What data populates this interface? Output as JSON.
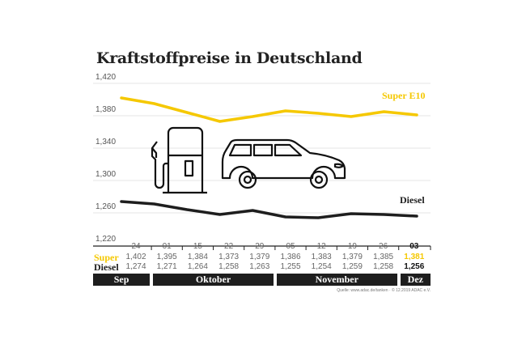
{
  "chart_data": {
    "type": "line",
    "title": "Kraftstoffpreise in Deutschland",
    "categories": [
      "24",
      "01",
      "15",
      "22",
      "29",
      "05",
      "12",
      "19",
      "26",
      "03"
    ],
    "months": [
      {
        "label": "Sep",
        "span": 1
      },
      {
        "label": "Oktober",
        "span": 4
      },
      {
        "label": "November",
        "span": 4
      },
      {
        "label": "Dez",
        "span": 1
      }
    ],
    "series": [
      {
        "name": "Super E10",
        "row_label": "Super",
        "color": "#f5c800",
        "values": [
          1.402,
          1.395,
          1.384,
          1.373,
          1.379,
          1.386,
          1.383,
          1.379,
          1.385,
          1.381
        ],
        "labels": [
          "1,402",
          "1,395",
          "1,384",
          "1,373",
          "1,379",
          "1,386",
          "1,383",
          "1,379",
          "1,385",
          "1,381"
        ]
      },
      {
        "name": "Diesel",
        "row_label": "Diesel",
        "color": "#1e1e1e",
        "values": [
          1.274,
          1.271,
          1.264,
          1.258,
          1.263,
          1.255,
          1.254,
          1.259,
          1.258,
          1.256
        ],
        "labels": [
          "1,274",
          "1,271",
          "1,264",
          "1,258",
          "1,263",
          "1,255",
          "1,254",
          "1,259",
          "1,258",
          "1,256"
        ]
      }
    ],
    "yticks": [
      "1,420",
      "1,380",
      "1,340",
      "1,300",
      "1,260",
      "1,220"
    ],
    "ylim": [
      1.22,
      1.42
    ],
    "grid": true
  },
  "source": "Quelle: www.adac.de/tanken · © 12.2019 ADAC e.V.",
  "icons": [
    "fuel-pump-icon",
    "car-icon"
  ]
}
